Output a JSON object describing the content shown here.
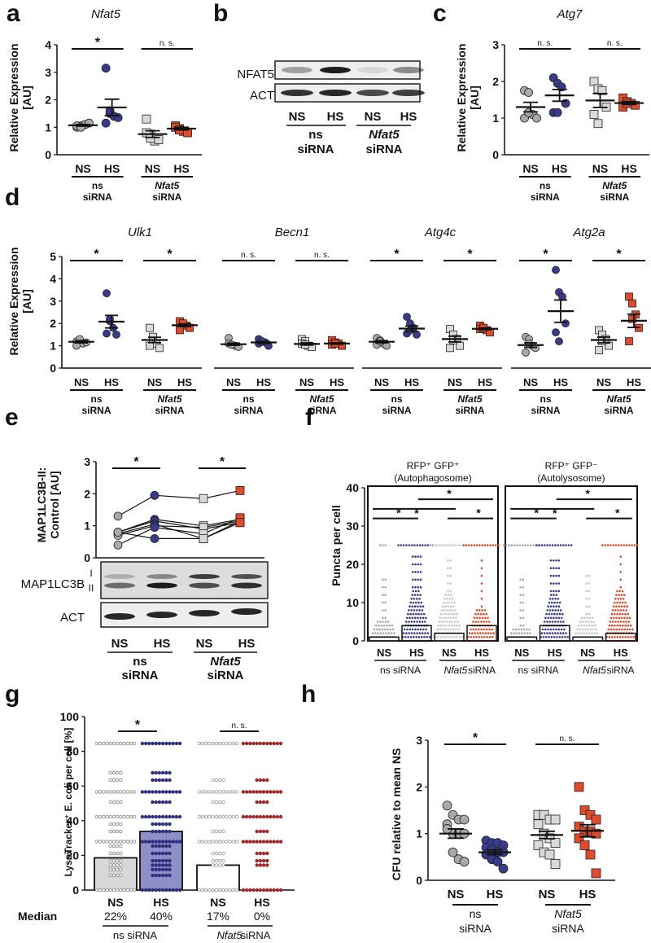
{
  "panel_letters": [
    "a",
    "b",
    "c",
    "d",
    "e",
    "f",
    "g",
    "h"
  ],
  "colors": {
    "ns_ns": "#a9a9a9",
    "ns_hs": "#3a3a8c",
    "nfat_ns": "#d9d9d9",
    "nfat_hs": "#e04a2a",
    "nfat_hs_dark": "#c0392b",
    "ink": "#111111"
  },
  "labels": {
    "ns": "NS",
    "hs": "HS",
    "ns_sirna_1": "ns",
    "ns_sirna_2": "siRNA",
    "nfat_sirna_1": "Nfat5",
    "nfat_sirna_2": "siRNA",
    "ns_sirna_full": "ns siRNA",
    "nfat_sirna_full": "siRNA",
    "star": "*",
    "nsig": "n. s."
  },
  "blot_b": {
    "rows": [
      "NFAT5",
      "ACT"
    ],
    "lanes": [
      "NS",
      "HS",
      "NS",
      "HS"
    ],
    "nfat5_intensity": [
      0.35,
      0.95,
      0.1,
      0.45
    ],
    "act_intensity": [
      0.85,
      0.9,
      0.75,
      0.8
    ]
  },
  "blot_e": {
    "rows": [
      "MAP1LC3B",
      "ACT"
    ],
    "band_labels": [
      "I",
      "II"
    ],
    "lanes": [
      "NS",
      "HS",
      "NS",
      "HS"
    ]
  },
  "chart_data": [
    {
      "id": "a",
      "type": "scatter",
      "title": "Nfat5",
      "ylabel": "Relative Expression [AU]",
      "ylim": [
        0,
        4
      ],
      "yticks": [
        0,
        1,
        2,
        3,
        4
      ],
      "groups": [
        {
          "name": "ns siRNA NS",
          "values": [
            1.0,
            1.05,
            1.1,
            1.15,
            1.05,
            1.0
          ],
          "mean": 1.07,
          "sem": 0.03
        },
        {
          "name": "ns siRNA HS",
          "values": [
            3.15,
            1.5,
            1.4,
            1.35,
            1.15,
            1.6
          ],
          "mean": 1.72,
          "sem": 0.3
        },
        {
          "name": "Nfat5 siRNA NS",
          "values": [
            1.3,
            0.75,
            0.5,
            0.55,
            0.8,
            0.6
          ],
          "mean": 0.75,
          "sem": 0.12
        },
        {
          "name": "Nfat5 siRNA HS",
          "values": [
            1.05,
            0.95,
            0.85,
            0.8,
            1.0,
            0.9
          ],
          "mean": 0.95,
          "sem": 0.05
        }
      ],
      "significance": [
        "*",
        "n. s."
      ]
    },
    {
      "id": "c",
      "type": "scatter",
      "title": "Atg7",
      "ylabel": "Relative Expression [AU]",
      "ylim": [
        0,
        3
      ],
      "yticks": [
        0,
        1,
        2,
        3
      ],
      "groups": [
        {
          "name": "ns siRNA NS",
          "values": [
            1.75,
            1.7,
            1.1,
            1.0,
            1.0,
            1.15
          ],
          "mean": 1.3,
          "sem": 0.13
        },
        {
          "name": "ns siRNA HS",
          "values": [
            2.1,
            1.95,
            1.85,
            1.4,
            1.15,
            1.15
          ],
          "mean": 1.62,
          "sem": 0.16
        },
        {
          "name": "Nfat5 siRNA NS",
          "values": [
            2.0,
            1.8,
            1.75,
            1.3,
            1.1,
            0.85
          ],
          "mean": 1.48,
          "sem": 0.19
        },
        {
          "name": "Nfat5 siRNA HS",
          "values": [
            1.55,
            1.45,
            1.4,
            1.35,
            1.3,
            1.4
          ],
          "mean": 1.41,
          "sem": 0.04
        }
      ],
      "significance": [
        "n. s.",
        "n. s."
      ]
    },
    {
      "id": "d",
      "type": "scatter",
      "ylabel": "Relative Expression [AU]",
      "ylim": [
        0,
        5
      ],
      "yticks": [
        0,
        1,
        2,
        3,
        4,
        5
      ],
      "subplots": [
        {
          "title": "Ulk1",
          "significance": [
            "*",
            "*"
          ],
          "groups": [
            {
              "name": "ns siRNA NS",
              "values": [
                1.2,
                1.25,
                1.1,
                1.15,
                1.0,
                1.3
              ],
              "mean": 1.18,
              "sem": 0.05
            },
            {
              "name": "ns siRNA HS",
              "values": [
                3.35,
                2.1,
                1.8,
                1.5,
                1.55,
                2.2
              ],
              "mean": 2.08,
              "sem": 0.28
            },
            {
              "name": "Nfat5 siRNA NS",
              "values": [
                1.8,
                1.3,
                1.1,
                0.9,
                1.0,
                1.4
              ],
              "mean": 1.26,
              "sem": 0.12
            },
            {
              "name": "Nfat5 siRNA HS",
              "values": [
                2.1,
                1.95,
                1.9,
                1.8,
                1.7,
                2.0
              ],
              "mean": 1.92,
              "sem": 0.06
            }
          ]
        },
        {
          "title": "Becn1",
          "significance": [
            "n. s.",
            "n. s."
          ],
          "groups": [
            {
              "name": "ns siRNA NS",
              "values": [
                1.35,
                1.05,
                1.0,
                0.95,
                1.1,
                1.05
              ],
              "mean": 1.07,
              "sem": 0.05
            },
            {
              "name": "ns siRNA HS",
              "values": [
                1.3,
                1.2,
                1.15,
                1.0,
                1.1,
                1.2
              ],
              "mean": 1.15,
              "sem": 0.04
            },
            {
              "name": "Nfat5 siRNA NS",
              "values": [
                1.3,
                1.2,
                1.0,
                0.95,
                1.1,
                1.05
              ],
              "mean": 1.08,
              "sem": 0.05
            },
            {
              "name": "Nfat5 siRNA HS",
              "values": [
                1.25,
                1.15,
                1.1,
                1.0,
                1.05,
                1.1
              ],
              "mean": 1.1,
              "sem": 0.03
            }
          ]
        },
        {
          "title": "Atg4c",
          "significance": [
            "*",
            "*"
          ],
          "groups": [
            {
              "name": "ns siRNA NS",
              "values": [
                1.35,
                1.25,
                1.1,
                1.0,
                1.05,
                1.2
              ],
              "mean": 1.18,
              "sem": 0.05
            },
            {
              "name": "ns siRNA HS",
              "values": [
                2.3,
                2.0,
                1.8,
                1.5,
                1.55,
                1.7
              ],
              "mean": 1.77,
              "sem": 0.12
            },
            {
              "name": "Nfat5 siRNA NS",
              "values": [
                1.75,
                1.5,
                1.3,
                1.0,
                0.9,
                1.25
              ],
              "mean": 1.3,
              "sem": 0.13
            },
            {
              "name": "Nfat5 siRNA HS",
              "values": [
                1.9,
                1.8,
                1.7,
                1.6,
                1.75,
                1.8
              ],
              "mean": 1.76,
              "sem": 0.04
            }
          ]
        },
        {
          "title": "Atg2a",
          "significance": [
            "*",
            "*"
          ],
          "groups": [
            {
              "name": "ns siRNA NS",
              "values": [
                1.4,
                1.3,
                1.0,
                0.9,
                0.7,
                1.1
              ],
              "mean": 1.03,
              "sem": 0.1
            },
            {
              "name": "ns siRNA HS",
              "values": [
                4.4,
                3.4,
                3.2,
                2.0,
                1.6,
                1.2
              ],
              "mean": 2.55,
              "sem": 0.5
            },
            {
              "name": "Nfat5 siRNA NS",
              "values": [
                1.7,
                1.5,
                1.3,
                1.0,
                0.8,
                1.2
              ],
              "mean": 1.26,
              "sem": 0.13
            },
            {
              "name": "Nfat5 siRNA HS",
              "values": [
                3.2,
                2.9,
                2.4,
                1.8,
                1.2,
                2.2
              ],
              "mean": 2.12,
              "sem": 0.3
            }
          ]
        }
      ]
    },
    {
      "id": "e",
      "type": "line",
      "ylabel": "MAP1LC3B-II: Control [AU]",
      "ylim": [
        0,
        3
      ],
      "yticks": [
        0,
        1,
        2,
        3
      ],
      "categories": [
        "ns NS",
        "ns HS",
        "Nfat5 NS",
        "Nfat5 HS"
      ],
      "series": [
        {
          "values": [
            1.3,
            1.95,
            1.85,
            2.1
          ]
        },
        {
          "values": [
            0.8,
            1.2,
            1.0,
            1.2
          ]
        },
        {
          "values": [
            0.8,
            1.15,
            0.9,
            1.1
          ]
        },
        {
          "values": [
            0.75,
            1.05,
            0.6,
            1.15
          ]
        },
        {
          "values": [
            0.7,
            1.0,
            0.95,
            1.15
          ]
        },
        {
          "values": [
            0.4,
            0.95,
            0.75,
            1.25
          ]
        },
        {
          "values": [
            0.8,
            0.6,
            0.6,
            1.1
          ]
        }
      ],
      "significance": [
        "*",
        "*"
      ]
    },
    {
      "id": "f",
      "type": "scatter",
      "ylabel": "Puncta per cell",
      "ylim": [
        0,
        40
      ],
      "yticks": [
        0,
        10,
        20,
        30,
        40
      ],
      "subplots": [
        {
          "title_line1": "RFP⁺ GFP⁺",
          "title_line2": "(Autophagosome)",
          "medians": [
            1,
            4,
            2,
            4
          ],
          "max_dense": [
            5,
            13,
            12,
            8
          ]
        },
        {
          "title_line1": "RFP⁺ GFP⁻",
          "title_line2": "(Autolysosome)",
          "medians": [
            1,
            4,
            1,
            2
          ],
          "max_dense": [
            3,
            12,
            6,
            13
          ]
        }
      ],
      "significance": [
        "*",
        "*",
        "*",
        "*"
      ]
    },
    {
      "id": "g",
      "type": "bar",
      "ylabel": "LysoTracker⁺ E. coli per cell [%]",
      "ylim": [
        0,
        100
      ],
      "yticks": [
        0,
        20,
        40,
        60,
        80,
        100
      ],
      "categories": [
        "NS",
        "HS",
        "NS",
        "HS"
      ],
      "values": [
        22,
        40,
        17,
        0
      ],
      "median_label": "Median",
      "median_text": [
        "22%",
        "40%",
        "17%",
        "0%"
      ],
      "significance": [
        "*",
        "n. s."
      ]
    },
    {
      "id": "h",
      "type": "scatter",
      "ylabel": "CFU relative to mean NS",
      "ylim": [
        0,
        3
      ],
      "yticks": [
        0,
        1,
        2,
        3
      ],
      "groups": [
        {
          "name": "ns siRNA NS",
          "values": [
            1.6,
            1.4,
            1.3,
            1.3,
            1.2,
            1.0,
            1.0,
            1.0,
            1.1,
            0.6,
            0.45,
            0.4
          ],
          "mean": 1.0,
          "sem": 0.1
        },
        {
          "name": "ns siRNA HS",
          "values": [
            0.85,
            0.8,
            0.8,
            0.75,
            0.7,
            0.65,
            0.6,
            0.6,
            0.55,
            0.45,
            0.4,
            0.25
          ],
          "mean": 0.6,
          "sem": 0.05
        },
        {
          "name": "Nfat5 siRNA NS",
          "values": [
            1.4,
            1.4,
            1.3,
            1.3,
            1.2,
            1.0,
            0.9,
            0.8,
            0.75,
            0.6,
            0.55,
            0.35
          ],
          "mean": 0.97,
          "sem": 0.08
        },
        {
          "name": "Nfat5 siRNA HS",
          "values": [
            2.0,
            1.5,
            1.4,
            1.3,
            1.15,
            1.05,
            1.05,
            1.0,
            0.9,
            0.75,
            0.55,
            0.15
          ],
          "mean": 1.06,
          "sem": 0.13
        }
      ],
      "significance": [
        "*",
        "n. s."
      ]
    }
  ]
}
